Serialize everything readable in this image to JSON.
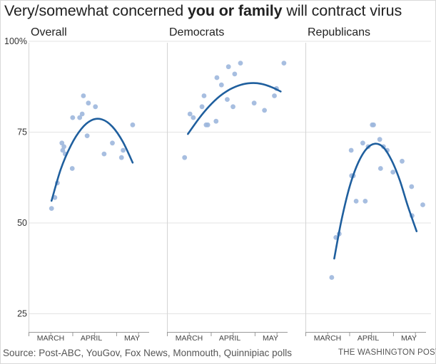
{
  "header": {
    "title_start": "Very/somewhat concerned ",
    "title_bold": "you or family",
    "title_end": " will contract virus"
  },
  "footer": {
    "source": "Source: Post-ABC, YouGov, Fox News, Monmouth, Quinnipiac polls",
    "credit": "THE WASHINGTON POST"
  },
  "colors": {
    "point": "#9db7dd",
    "curve": "#1f5f9e",
    "grid": "#e3e3e3",
    "axis": "#999999",
    "text": "#333333"
  },
  "chart_data": {
    "type": "scatter",
    "ylim": [
      20,
      100
    ],
    "yticks": [
      25,
      50,
      75,
      100
    ],
    "ytick_labels": [
      "25",
      "50",
      "75",
      "100%"
    ],
    "xticks": [
      "MARCH",
      "APRIL",
      "MAY"
    ],
    "xlim_months": [
      0,
      2.75
    ],
    "grid": true,
    "panels": [
      {
        "title": "Overall",
        "points": [
          [
            0.28,
            54
          ],
          [
            0.36,
            57
          ],
          [
            0.42,
            61
          ],
          [
            0.53,
            72
          ],
          [
            0.55,
            70
          ],
          [
            0.58,
            71
          ],
          [
            0.61,
            69
          ],
          [
            0.78,
            65
          ],
          [
            0.79,
            79
          ],
          [
            0.96,
            79
          ],
          [
            1.02,
            80
          ],
          [
            1.05,
            85
          ],
          [
            1.14,
            74
          ],
          [
            1.17,
            83
          ],
          [
            1.34,
            82
          ],
          [
            1.55,
            69
          ],
          [
            1.75,
            72
          ],
          [
            1.97,
            68
          ],
          [
            2.01,
            70
          ],
          [
            2.24,
            77
          ]
        ],
        "curve": [
          [
            0.28,
            56.1
          ],
          [
            0.5,
            64.7
          ],
          [
            0.75,
            71.4
          ],
          [
            1.0,
            75.9
          ],
          [
            1.25,
            78.3
          ],
          [
            1.5,
            78.5
          ],
          [
            1.75,
            76.5
          ],
          [
            2.0,
            72.4
          ],
          [
            2.24,
            66.6
          ]
        ]
      },
      {
        "title": "Democrats",
        "points": [
          [
            0.15,
            68
          ],
          [
            0.28,
            80
          ],
          [
            0.36,
            79
          ],
          [
            0.57,
            82
          ],
          [
            0.62,
            85
          ],
          [
            0.67,
            77
          ],
          [
            0.71,
            77
          ],
          [
            0.91,
            78
          ],
          [
            0.93,
            90
          ],
          [
            1.04,
            88
          ],
          [
            1.18,
            84
          ],
          [
            1.21,
            93
          ],
          [
            1.32,
            82
          ],
          [
            1.36,
            91
          ],
          [
            1.5,
            94
          ],
          [
            1.83,
            83
          ],
          [
            2.08,
            81
          ],
          [
            2.32,
            85
          ],
          [
            2.37,
            87
          ],
          [
            2.55,
            94
          ]
        ],
        "curve": [
          [
            0.23,
            74.5
          ],
          [
            0.5,
            78.8
          ],
          [
            0.75,
            82.2
          ],
          [
            1.0,
            84.9
          ],
          [
            1.25,
            86.8
          ],
          [
            1.5,
            88.0
          ],
          [
            1.75,
            88.5
          ],
          [
            2.0,
            88.3
          ],
          [
            2.25,
            87.4
          ],
          [
            2.47,
            86.2
          ]
        ]
      },
      {
        "title": "Republicans",
        "points": [
          [
            0.36,
            35
          ],
          [
            0.46,
            46
          ],
          [
            0.54,
            47
          ],
          [
            0.83,
            70
          ],
          [
            0.84,
            63
          ],
          [
            0.88,
            63
          ],
          [
            0.95,
            56
          ],
          [
            1.11,
            72
          ],
          [
            1.17,
            56
          ],
          [
            1.24,
            71
          ],
          [
            1.34,
            77
          ],
          [
            1.37,
            77
          ],
          [
            1.52,
            73
          ],
          [
            1.54,
            65
          ],
          [
            1.61,
            71
          ],
          [
            1.7,
            70
          ],
          [
            1.84,
            64
          ],
          [
            2.06,
            67
          ],
          [
            2.29,
            60
          ],
          [
            2.3,
            52
          ],
          [
            2.56,
            55
          ]
        ],
        "curve": [
          [
            0.42,
            40.2
          ],
          [
            0.6,
            51.0
          ],
          [
            0.8,
            60.3
          ],
          [
            1.0,
            66.6
          ],
          [
            1.2,
            70.4
          ],
          [
            1.4,
            71.8
          ],
          [
            1.6,
            70.9
          ],
          [
            1.8,
            67.4
          ],
          [
            2.0,
            61.9
          ],
          [
            2.2,
            54.6
          ],
          [
            2.41,
            47.7
          ]
        ]
      }
    ]
  }
}
